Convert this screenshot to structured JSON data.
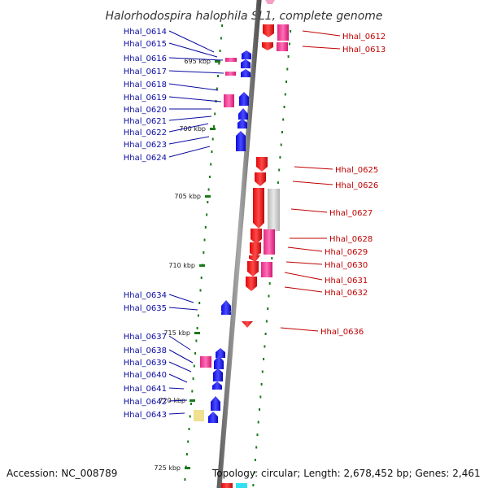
{
  "title": "Halorhodospira halophila SL1, complete genome",
  "footer": {
    "accession": "Accession: NC_008789",
    "topology": "Topology: circular; Length: 2,678,452 bp; Genes: 2,461"
  },
  "colors": {
    "plus_strand": "#1010ee",
    "minus_strand": "#ee1010",
    "highlight_pink": "#e8388f",
    "gray_feature": "#c8c8c8",
    "yellow_feature": "#f0e090",
    "cyan_feature": "#30e0f0",
    "tick_green": "#1a7a1a",
    "left_label": "#0a0aa0",
    "right_label": "#c00000",
    "backbone": "#808080"
  },
  "ticks": [
    {
      "text": "695 kbp"
    },
    {
      "text": "700 kbp"
    },
    {
      "text": "705 kbp"
    },
    {
      "text": "710 kbp"
    },
    {
      "text": "715 kbp"
    },
    {
      "text": "720 kbp"
    },
    {
      "text": "725 kbp"
    }
  ],
  "left_genes": [
    {
      "label": "Hhal_0614"
    },
    {
      "label": "Hhal_0615"
    },
    {
      "label": "Hhal_0616"
    },
    {
      "label": "Hhal_0617"
    },
    {
      "label": "Hhal_0618"
    },
    {
      "label": "Hhal_0619"
    },
    {
      "label": "Hhal_0620"
    },
    {
      "label": "Hhal_0621"
    },
    {
      "label": "Hhal_0622"
    },
    {
      "label": "Hhal_0623"
    },
    {
      "label": "Hhal_0624"
    },
    {
      "label": "Hhal_0634"
    },
    {
      "label": "Hhal_0635"
    },
    {
      "label": "Hhal_0637"
    },
    {
      "label": "Hhal_0638"
    },
    {
      "label": "Hhal_0639"
    },
    {
      "label": "Hhal_0640"
    },
    {
      "label": "Hhal_0641"
    },
    {
      "label": "Hhal_0642"
    },
    {
      "label": "Hhal_0643"
    }
  ],
  "right_genes": [
    {
      "label": "Hhal_0612"
    },
    {
      "label": "Hhal_0613"
    },
    {
      "label": "Hhal_0625"
    },
    {
      "label": "Hhal_0626"
    },
    {
      "label": "Hhal_0627"
    },
    {
      "label": "Hhal_0628"
    },
    {
      "label": "Hhal_0629"
    },
    {
      "label": "Hhal_0630"
    },
    {
      "label": "Hhal_0631"
    },
    {
      "label": "Hhal_0632"
    },
    {
      "label": "Hhal_0636"
    }
  ]
}
